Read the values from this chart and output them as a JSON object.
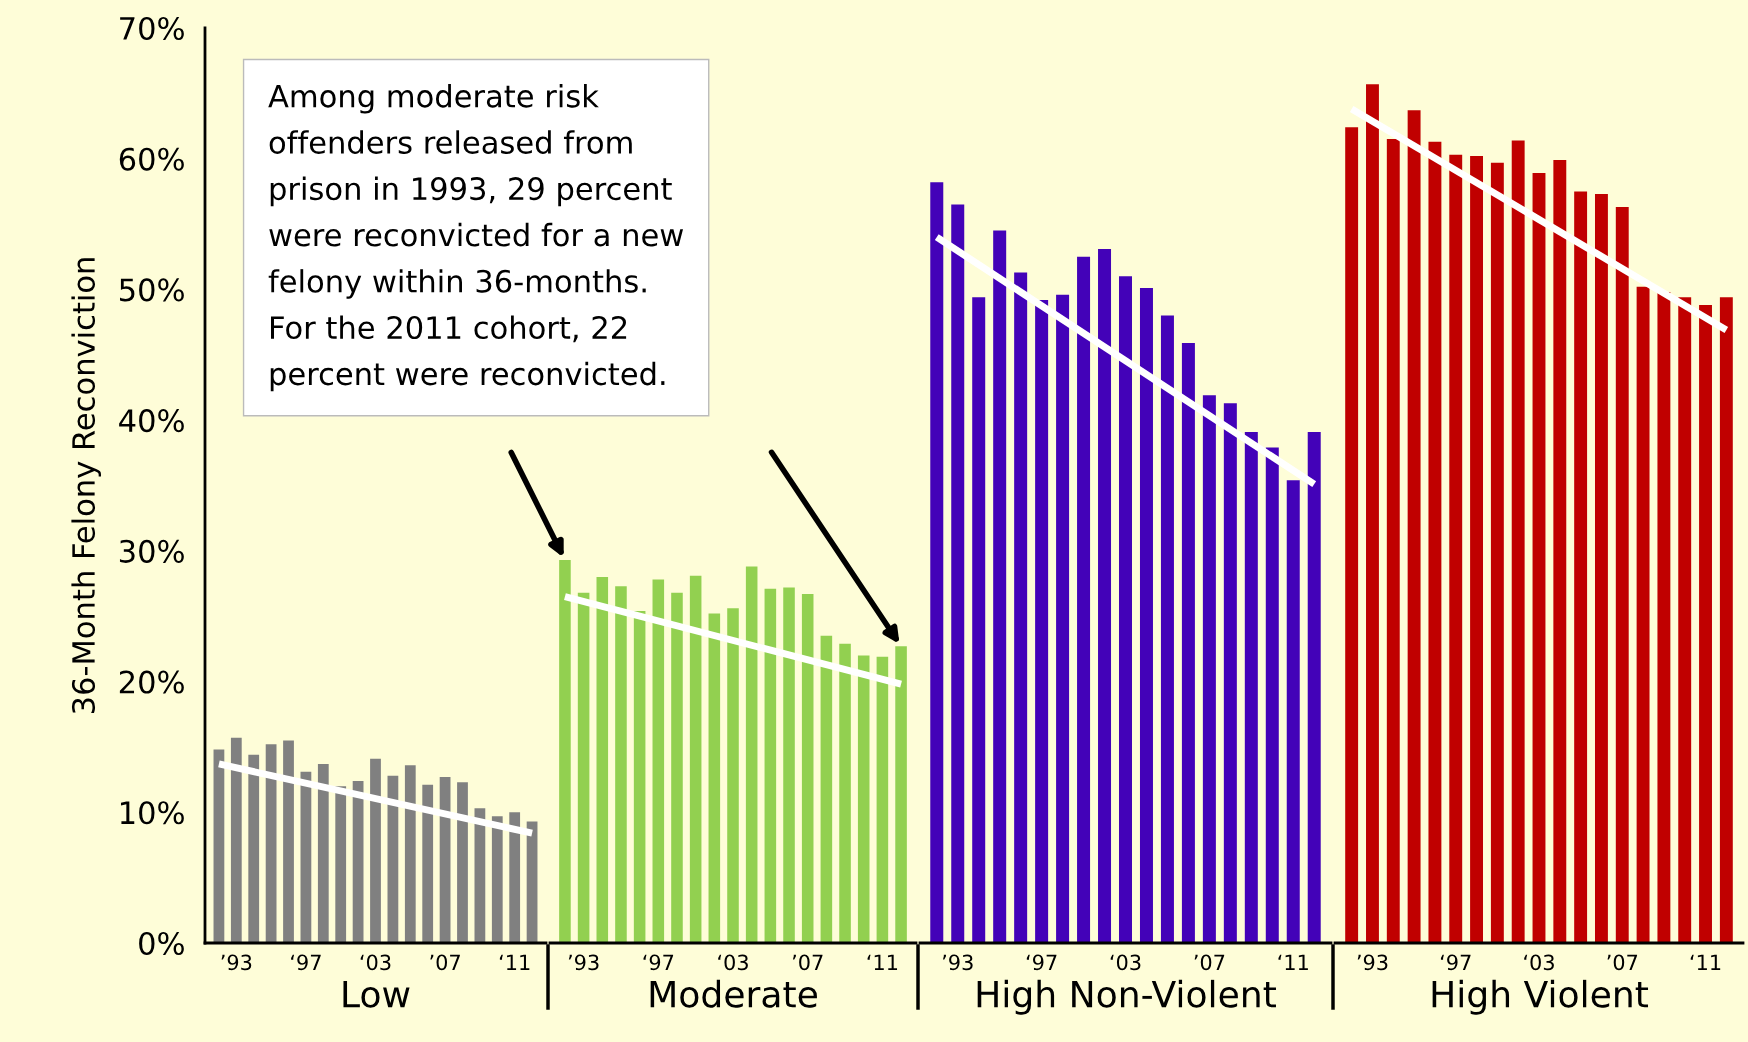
{
  "chart_data": [
    {
      "type": "bar",
      "ylabel": "36-Month Felony Reconviction",
      "xlabel": "Low",
      "categories": [
        null,
        "’93",
        null,
        null,
        null,
        "‘97",
        null,
        null,
        null,
        "‘03",
        null,
        null,
        null,
        "’07",
        null,
        null,
        null,
        "‘11",
        null
      ],
      "series": [
        {
          "color": "#808080",
          "values": [
            14.8,
            15.7,
            14.4,
            15.2,
            15.5,
            13.1,
            13.7,
            12.0,
            12.4,
            14.1,
            12.8,
            13.6,
            12.1,
            12.7,
            12.3,
            10.3,
            9.7,
            10.0,
            9.3
          ]
        },
        {
          "type": "line",
          "color": "#ffffff",
          "values": [
            13.7,
            null,
            null,
            null,
            null,
            null,
            null,
            null,
            null,
            null,
            null,
            null,
            null,
            null,
            null,
            null,
            null,
            null,
            8.4
          ]
        }
      ],
      "ylim": [
        0,
        70
      ],
      "yticks": [
        {
          "value": 0,
          "label": "0%"
        },
        {
          "value": 10,
          "label": "10%"
        },
        {
          "value": 20,
          "label": "20%"
        },
        {
          "value": 30,
          "label": "30%"
        },
        {
          "value": 40,
          "label": "40%"
        },
        {
          "value": 50,
          "label": "50%"
        },
        {
          "value": 60,
          "label": "60%"
        },
        {
          "value": 70,
          "label": "70%"
        }
      ]
    },
    {
      "type": "bar",
      "xlabel": "Moderate",
      "categories": [
        null,
        "’93",
        null,
        null,
        null,
        "‘97",
        null,
        null,
        null,
        "‘03",
        null,
        null,
        null,
        "’07",
        null,
        null,
        null,
        "‘11",
        null
      ],
      "series": [
        {
          "color": "#92d050",
          "values": [
            29.3,
            26.8,
            28.0,
            27.3,
            25.4,
            27.8,
            26.8,
            28.1,
            25.2,
            25.6,
            28.8,
            27.1,
            27.2,
            26.7,
            23.5,
            22.9,
            22.0,
            21.9,
            22.7
          ]
        },
        {
          "type": "line",
          "color": "#ffffff",
          "values": [
            26.5,
            null,
            null,
            null,
            null,
            null,
            null,
            null,
            null,
            null,
            null,
            null,
            null,
            null,
            null,
            null,
            null,
            null,
            19.8
          ]
        }
      ],
      "ylim": [
        0,
        70
      ],
      "tick_labels": "x",
      "annotations": [
        "Among moderate risk\noffenders released from\nprison in 1993, 29 percent\nwere reconvicted for a new\nfelony within 36-months.\nFor the 2011 cohort, 22\npercent were reconvicted."
      ]
    },
    {
      "type": "bar",
      "xlabel": "High Non-Violent",
      "categories": [
        null,
        "’93",
        null,
        null,
        null,
        "‘97",
        null,
        null,
        null,
        "‘03",
        null,
        null,
        null,
        "’07",
        null,
        null,
        null,
        "‘11",
        null
      ],
      "series": [
        {
          "color": "#4302b8",
          "values": [
            58.2,
            56.5,
            49.4,
            54.5,
            51.3,
            49.2,
            49.6,
            52.5,
            53.1,
            51.0,
            50.1,
            48.0,
            45.9,
            41.9,
            41.3,
            39.1,
            37.9,
            35.4,
            39.1
          ]
        },
        {
          "type": "line",
          "color": "#ffffff",
          "values": [
            54.0,
            null,
            null,
            null,
            null,
            null,
            null,
            null,
            null,
            null,
            null,
            null,
            null,
            null,
            null,
            null,
            null,
            null,
            35.1
          ]
        }
      ],
      "ylim": [
        0,
        70
      ],
      "tick_labels": "x"
    },
    {
      "type": "bar",
      "xlabel": "High Violent",
      "categories": [
        null,
        "’93",
        null,
        null,
        null,
        "‘97",
        null,
        null,
        null,
        "‘03",
        null,
        null,
        null,
        "’07",
        null,
        null,
        null,
        "‘11",
        null
      ],
      "series": [
        {
          "color": "#c00000",
          "values": [
            62.4,
            65.7,
            61.5,
            63.7,
            61.3,
            60.3,
            60.2,
            59.7,
            61.4,
            58.9,
            59.9,
            57.5,
            57.3,
            56.3,
            50.2,
            49.8,
            49.4,
            48.8,
            49.4
          ]
        },
        {
          "type": "line",
          "color": "#ffffff",
          "values": [
            63.8,
            null,
            null,
            null,
            null,
            null,
            null,
            null,
            null,
            null,
            null,
            null,
            null,
            null,
            null,
            null,
            null,
            null,
            46.9
          ]
        }
      ],
      "ylim": [
        0,
        70
      ],
      "tick_labels": "x"
    }
  ]
}
